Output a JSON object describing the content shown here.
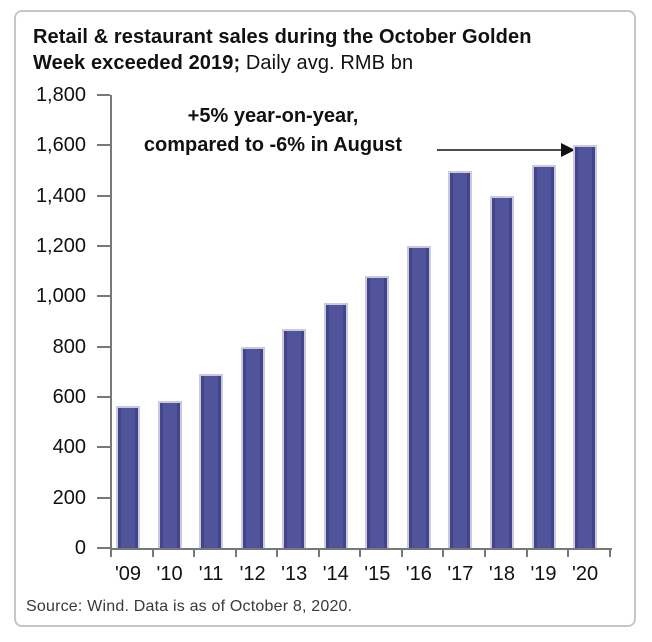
{
  "chart_data": {
    "type": "bar",
    "title_bold": "Retail & restaurant sales during the October Golden Week exceeded 2019;",
    "title_regular": " Daily avg. RMB bn",
    "categories": [
      "'09",
      "'10",
      "'11",
      "'12",
      "'13",
      "'14",
      "'15",
      "'16",
      "'17",
      "'18",
      "'19",
      "'20"
    ],
    "values": [
      565,
      585,
      690,
      800,
      870,
      975,
      1080,
      1200,
      1500,
      1400,
      1520,
      1600
    ],
    "xlabel": "",
    "ylabel": "",
    "ylim": [
      0,
      1800
    ],
    "ytick_step": 200,
    "ytick_labels": [
      "0",
      "200",
      "400",
      "600",
      "800",
      "1,000",
      "1,200",
      "1,400",
      "1,600",
      "1,800"
    ],
    "grid": false,
    "legend": "none",
    "annotation": {
      "line1": "+5% year-on-year,",
      "line2": "compared to -6% in August",
      "points_to": "'20"
    },
    "source": "Source: Wind. Data is as of October 8, 2020.",
    "colors": {
      "bar_fill": "#52549B",
      "bar_edge_dark": "#42458A",
      "bar_outline": "#CACADF",
      "axis": "#787878",
      "text": "#111111",
      "box_border": "#C6C6C6",
      "arrow": "#111111"
    }
  }
}
